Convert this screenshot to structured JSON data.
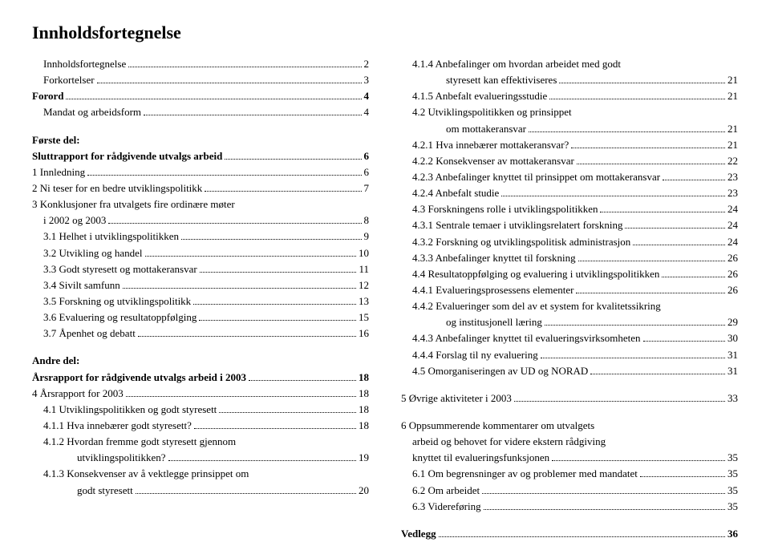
{
  "title": "Innholdsfortegnelse",
  "left": [
    {
      "type": "line",
      "indent": 1,
      "label": "Innholdsfortegnelse",
      "page": "2"
    },
    {
      "type": "line",
      "indent": 1,
      "label": "Forkortelser",
      "page": "3"
    },
    {
      "type": "line",
      "indent": 0,
      "bold": true,
      "label": "Forord",
      "page": "4"
    },
    {
      "type": "line",
      "indent": 1,
      "label": "Mandat og arbeidsform",
      "page": "4"
    },
    {
      "type": "spacer",
      "size": "md"
    },
    {
      "type": "text",
      "indent": 0,
      "bold": true,
      "label": "Første del:"
    },
    {
      "type": "line",
      "indent": 0,
      "bold": true,
      "label": "Sluttrapport for rådgivende utvalgs arbeid",
      "page": "6"
    },
    {
      "type": "line",
      "indent": 0,
      "label": "1   Innledning",
      "page": "6"
    },
    {
      "type": "line",
      "indent": 0,
      "label": "2   Ni teser for en bedre utviklingspolitikk",
      "page": "7"
    },
    {
      "type": "text",
      "indent": 0,
      "label": "3   Konklusjoner fra utvalgets fire ordinære møter"
    },
    {
      "type": "line",
      "indent": 1,
      "label": "  i 2002 og 2003",
      "page": "8"
    },
    {
      "type": "line",
      "indent": 1,
      "label": "3.1   Helhet i utviklingspolitikken",
      "page": "9"
    },
    {
      "type": "line",
      "indent": 1,
      "label": "3.2   Utvikling og handel",
      "page": "10"
    },
    {
      "type": "line",
      "indent": 1,
      "label": "3.3   Godt styresett og mottakeransvar",
      "page": "11"
    },
    {
      "type": "line",
      "indent": 1,
      "label": "3.4   Sivilt samfunn",
      "page": "12"
    },
    {
      "type": "line",
      "indent": 1,
      "label": "3.5   Forskning og utviklingspolitikk",
      "page": "13"
    },
    {
      "type": "line",
      "indent": 1,
      "label": "3.6   Evaluering og resultatoppfølging",
      "page": "15"
    },
    {
      "type": "line",
      "indent": 1,
      "label": "3.7   Åpenhet og debatt",
      "page": "16"
    },
    {
      "type": "spacer",
      "size": "md"
    },
    {
      "type": "text",
      "indent": 0,
      "bold": true,
      "label": "Andre del:"
    },
    {
      "type": "line",
      "indent": 0,
      "bold": true,
      "label": "Årsrapport for rådgivende utvalgs arbeid i 2003",
      "page": "18"
    },
    {
      "type": "line",
      "indent": 0,
      "label": "4   Årsrapport for 2003",
      "page": "18"
    },
    {
      "type": "line",
      "indent": 1,
      "label": "4.1   Utviklingspolitikken og godt styresett",
      "page": "18"
    },
    {
      "type": "line",
      "indent": 1,
      "label": "4.1.1 Hva innebærer godt styresett?",
      "page": "18"
    },
    {
      "type": "text",
      "indent": 1,
      "label": "4.1.2 Hvordan fremme godt styresett gjennom"
    },
    {
      "type": "line",
      "indent": 3,
      "label": "utviklingspolitikken?",
      "page": "19"
    },
    {
      "type": "text",
      "indent": 1,
      "label": "4.1.3 Konsekvenser av å vektlegge prinsippet om"
    },
    {
      "type": "line",
      "indent": 3,
      "label": "godt styresett",
      "page": "20"
    }
  ],
  "right": [
    {
      "type": "text",
      "indent": 1,
      "label": "4.1.4 Anbefalinger om hvordan arbeidet med godt"
    },
    {
      "type": "line",
      "indent": 3,
      "label": "styresett kan effektiviseres",
      "page": "21"
    },
    {
      "type": "line",
      "indent": 1,
      "label": "4.1.5 Anbefalt evalueringsstudie",
      "page": "21"
    },
    {
      "type": "text",
      "indent": 1,
      "label": "4.2   Utviklingspolitikken og prinsippet"
    },
    {
      "type": "line",
      "indent": 3,
      "label": "om mottakeransvar",
      "page": "21"
    },
    {
      "type": "line",
      "indent": 1,
      "label": "4.2.1 Hva innebærer mottakeransvar?",
      "page": "21"
    },
    {
      "type": "line",
      "indent": 1,
      "label": "4.2.2 Konsekvenser av mottakeransvar",
      "page": "22"
    },
    {
      "type": "line",
      "indent": 1,
      "label": "4.2.3 Anbefalinger knyttet til prinsippet om mottakeransvar",
      "page": "23"
    },
    {
      "type": "line",
      "indent": 1,
      "label": "4.2.4 Anbefalt studie",
      "page": "23"
    },
    {
      "type": "line",
      "indent": 1,
      "label": "4.3   Forskningens rolle i utviklingspolitikken",
      "page": "24"
    },
    {
      "type": "line",
      "indent": 1,
      "label": "4.3.1 Sentrale temaer i utviklingsrelatert forskning",
      "page": "24"
    },
    {
      "type": "line",
      "indent": 1,
      "label": "4.3.2 Forskning og utviklingspolitisk administrasjon",
      "page": "24"
    },
    {
      "type": "line",
      "indent": 1,
      "label": "4.3.3 Anbefalinger knyttet til forskning",
      "page": "26"
    },
    {
      "type": "line",
      "indent": 1,
      "label": "4.4   Resultatoppfølging og evaluering i utviklingspolitikken",
      "page": "26"
    },
    {
      "type": "line",
      "indent": 1,
      "label": "4.4.1 Evalueringsprosessens elementer",
      "page": "26"
    },
    {
      "type": "text",
      "indent": 1,
      "label": "4.4.2 Evalueringer som del av et system for kvalitetssikring"
    },
    {
      "type": "line",
      "indent": 3,
      "label": "og institusjonell læring",
      "page": "29"
    },
    {
      "type": "line",
      "indent": 1,
      "label": "4.4.3 Anbefalinger knyttet til evalueringsvirksomheten",
      "page": "30"
    },
    {
      "type": "line",
      "indent": 1,
      "label": "4.4.4 Forslag til ny evaluering",
      "page": "31"
    },
    {
      "type": "line",
      "indent": 1,
      "label": "4.5   Omorganiseringen av UD og NORAD",
      "page": "31"
    },
    {
      "type": "spacer",
      "size": "md"
    },
    {
      "type": "line",
      "indent": 0,
      "label": "5   Øvrige aktiviteter i 2003",
      "page": "33"
    },
    {
      "type": "spacer",
      "size": "md"
    },
    {
      "type": "text",
      "indent": 0,
      "label": "6   Oppsummerende kommentarer om utvalgets"
    },
    {
      "type": "text",
      "indent": 1,
      "label": "  arbeid og behovet for videre ekstern rådgiving"
    },
    {
      "type": "line",
      "indent": 1,
      "label": "  knyttet til evalueringsfunksjonen",
      "page": "35"
    },
    {
      "type": "line",
      "indent": 1,
      "label": "6.1   Om begrensninger av og problemer med mandatet",
      "page": "35"
    },
    {
      "type": "line",
      "indent": 1,
      "label": "6.2   Om arbeidet",
      "page": "35"
    },
    {
      "type": "line",
      "indent": 1,
      "label": "6.3   Videreføring",
      "page": "35"
    },
    {
      "type": "spacer",
      "size": "md"
    },
    {
      "type": "line",
      "indent": 0,
      "bold": true,
      "label": "Vedlegg",
      "page": "36"
    }
  ]
}
